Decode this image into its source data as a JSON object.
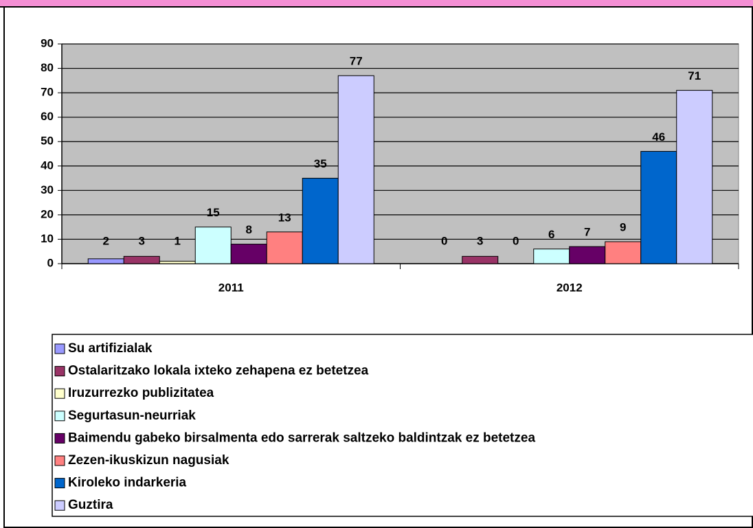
{
  "chart_data": {
    "type": "bar",
    "categories": [
      "2011",
      "2012"
    ],
    "series": [
      {
        "name": "Su artifizialak",
        "color": "#9999ff",
        "values": [
          2,
          0
        ]
      },
      {
        "name": "Ostalaritzako lokala ixteko zehapena ez betetzea",
        "color": "#993366",
        "values": [
          3,
          3
        ]
      },
      {
        "name": "Iruzurrezko publizitatea",
        "color": "#ffffcc",
        "values": [
          1,
          0
        ]
      },
      {
        "name": "Segurtasun-neurriak",
        "color": "#ccffff",
        "values": [
          15,
          6
        ]
      },
      {
        "name": "Baimendu gabeko birsalmenta edo sarrerak saltzeko baldintzak ez betetzea",
        "color": "#660066",
        "values": [
          8,
          7
        ]
      },
      {
        "name": "Zezen-ikuskizun nagusiak",
        "color": "#ff8080",
        "values": [
          13,
          9
        ]
      },
      {
        "name": "Kiroleko indarkeria",
        "color": "#0066cc",
        "values": [
          35,
          46
        ]
      },
      {
        "name": "Guztira",
        "color": "#ccccff",
        "values": [
          77,
          71
        ]
      }
    ],
    "ylim": [
      0,
      90
    ],
    "yticks": [
      0,
      10,
      20,
      30,
      40,
      50,
      60,
      70,
      80,
      90
    ],
    "grid": true,
    "plot_background": "#c0c0c0",
    "legend": "bottom"
  }
}
